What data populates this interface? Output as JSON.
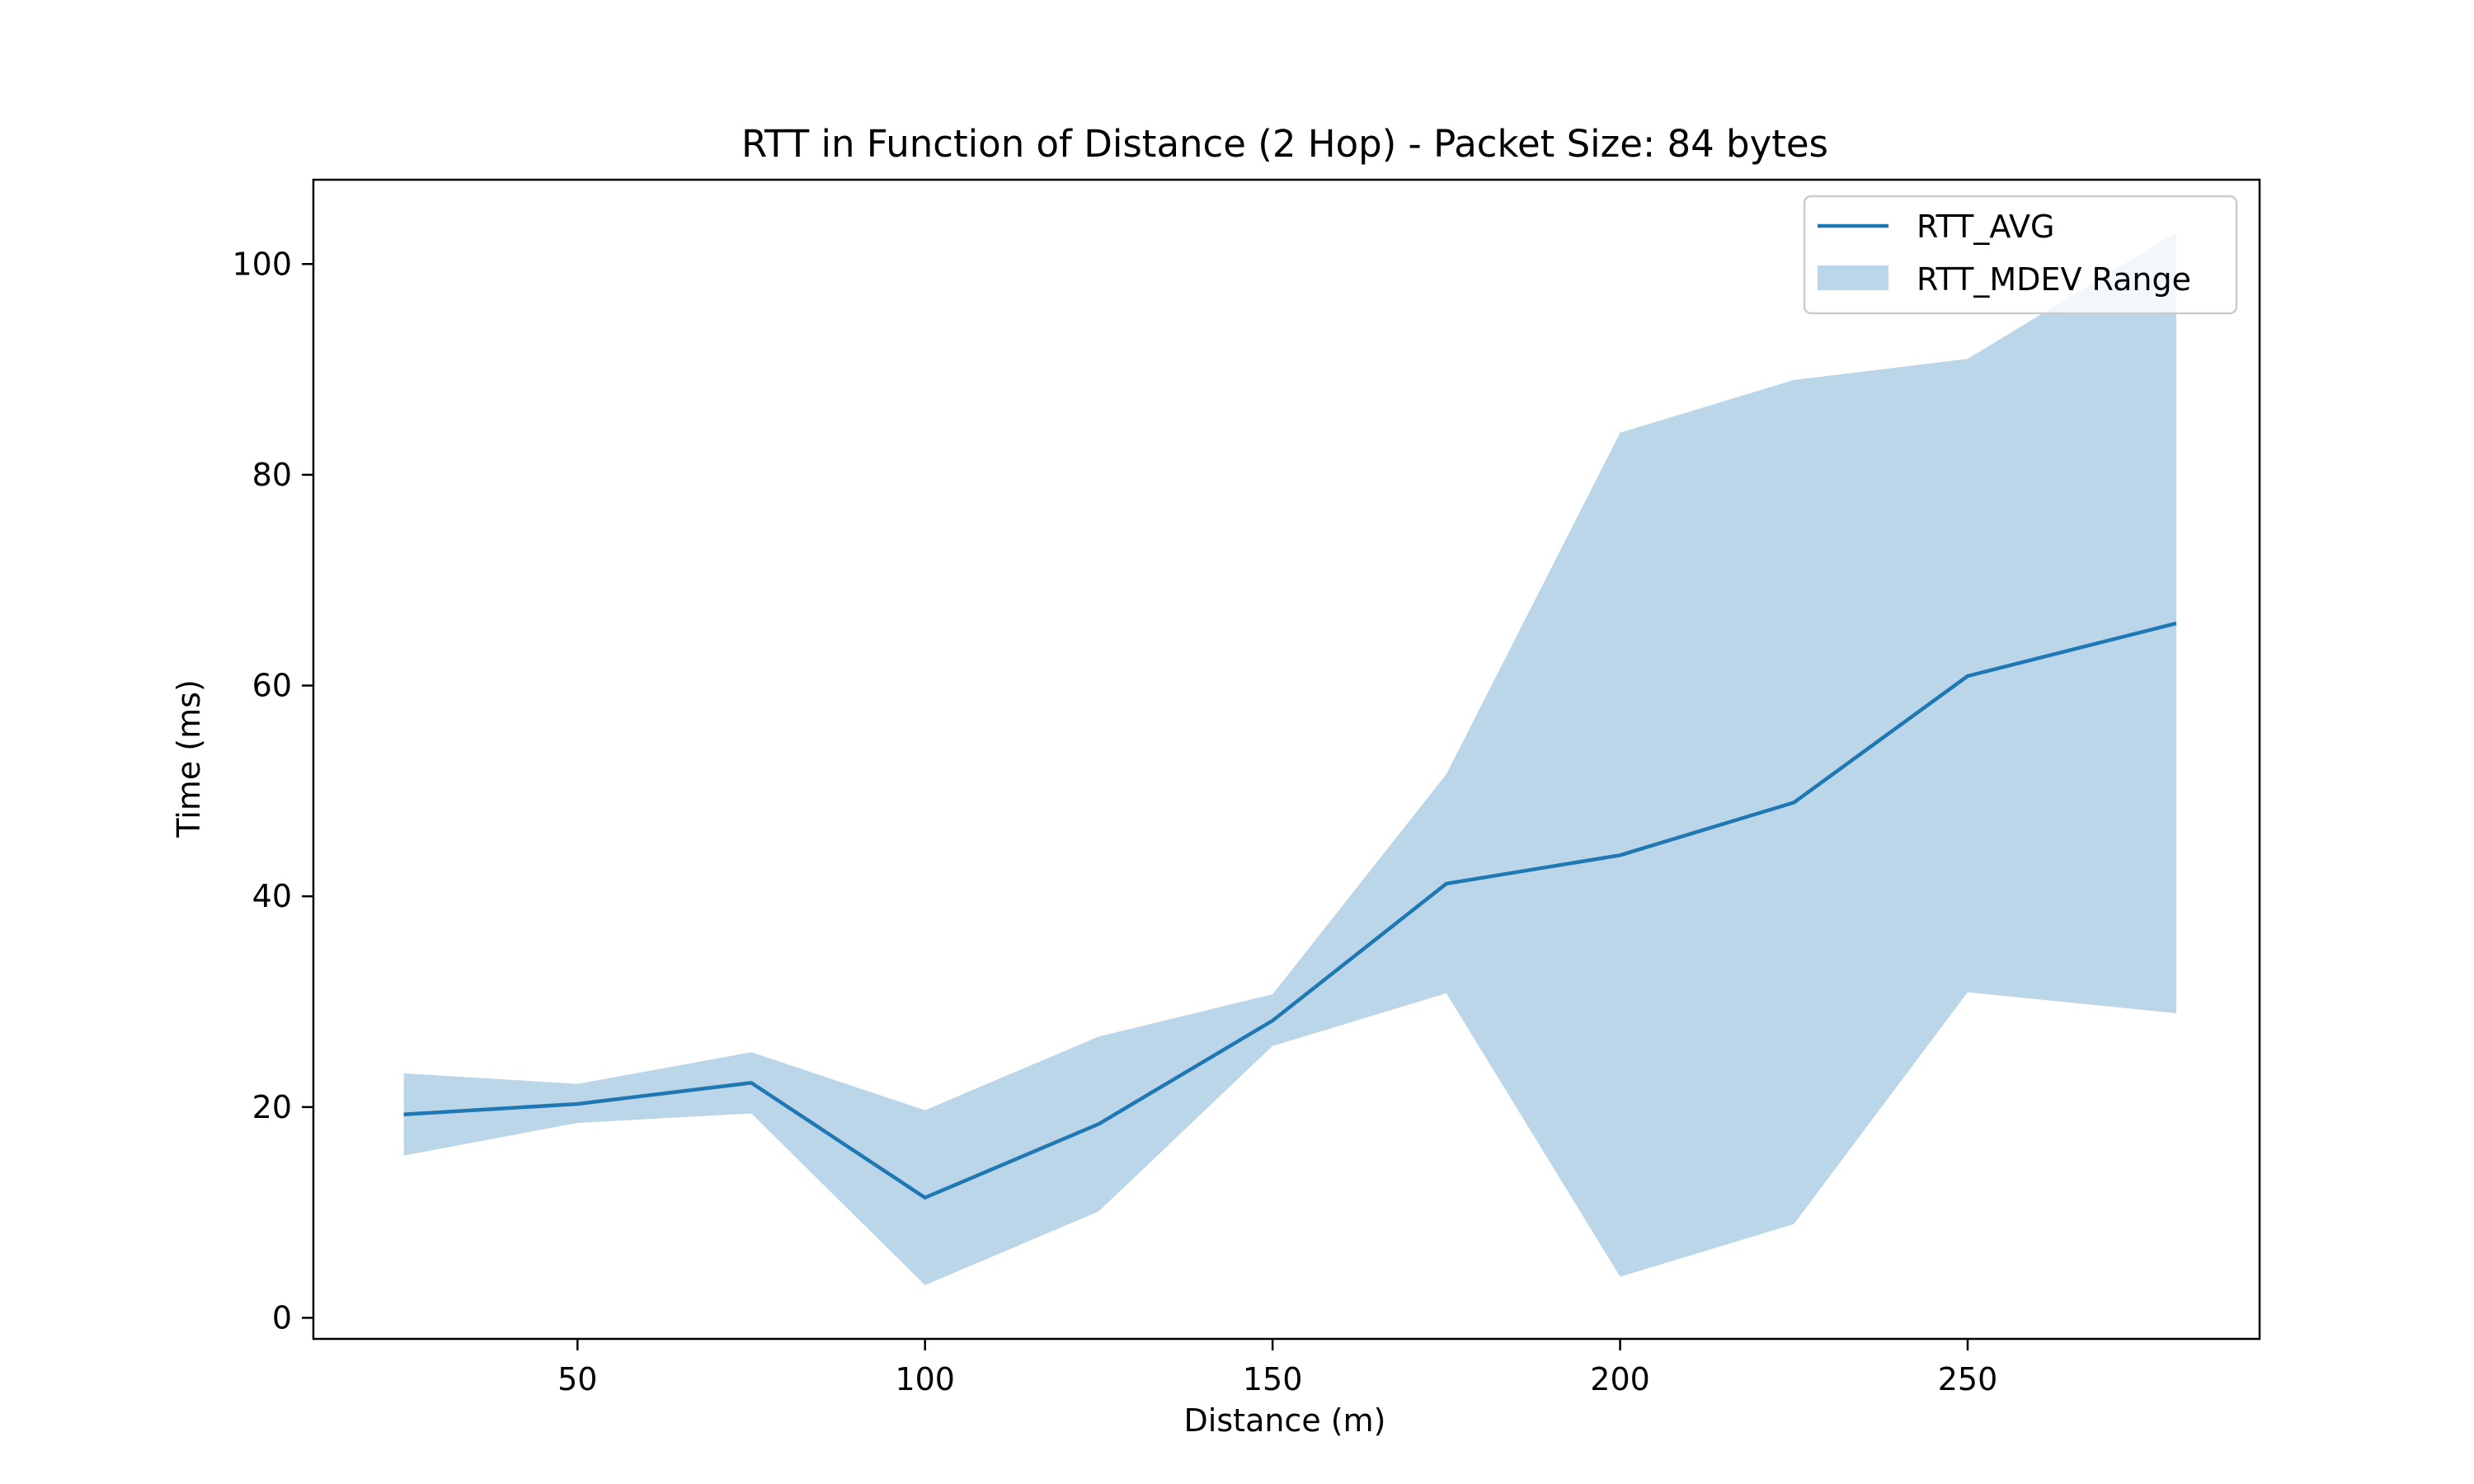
{
  "chart_data": {
    "type": "line",
    "title": "RTT in Function of Distance (2 Hop) - Packet Size: 84 bytes",
    "xlabel": "Distance (m)",
    "ylabel": "Time (ms)",
    "xlim": [
      12,
      292
    ],
    "ylim": [
      -2,
      108
    ],
    "xticks": [
      50,
      100,
      150,
      200,
      250
    ],
    "yticks": [
      0,
      20,
      40,
      60,
      80,
      100
    ],
    "grid": false,
    "legend_position": "upper right",
    "colors": {
      "line": "#1f77b4",
      "band": "#1f77b4"
    },
    "x": [
      25,
      50,
      75,
      100,
      125,
      150,
      175,
      200,
      225,
      250,
      280
    ],
    "series": [
      {
        "name": "RTT_AVG",
        "kind": "line",
        "values": [
          19.3,
          20.3,
          22.3,
          11.4,
          18.4,
          28.2,
          41.2,
          43.9,
          48.9,
          60.9,
          65.9
        ]
      },
      {
        "name": "RTT_MDEV Range",
        "kind": "band",
        "lower": [
          15.4,
          18.5,
          19.4,
          3.1,
          10.1,
          25.8,
          30.8,
          3.9,
          8.9,
          30.9,
          28.9
        ],
        "upper": [
          23.2,
          22.2,
          25.2,
          19.7,
          26.7,
          30.7,
          51.6,
          84.0,
          89.0,
          91.0,
          103.0
        ]
      }
    ]
  }
}
